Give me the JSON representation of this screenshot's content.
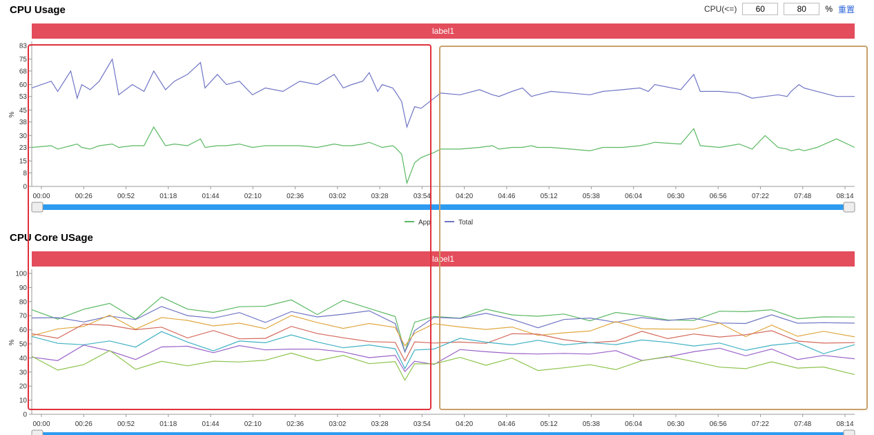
{
  "header": {
    "cpu_title": "CPU Usage",
    "core_title": "CPU Core USage"
  },
  "controls": {
    "label": "CPU(<=)",
    "low_value": "60",
    "high_value": "80",
    "unit": "%",
    "reset_label": "重置"
  },
  "colors": {
    "banner": "#e34d5c",
    "slider": "#2d9bf0",
    "red_box": "#e0303c",
    "tan_box": "#c9a068",
    "app": "#5ab862",
    "total": "#6f74c4",
    "cores": [
      "#5ab862",
      "#6f74c4",
      "#e0a840",
      "#d3685a",
      "#3fb1c2",
      "#9a62c8",
      "#8bc34a",
      "#5a9bd4"
    ]
  },
  "chart_data": [
    {
      "type": "line",
      "title": "CPU Usage",
      "banner": "label1",
      "ylabel": "%",
      "yticks": [
        0,
        8,
        15,
        23,
        30,
        38,
        45,
        53,
        60,
        68,
        75,
        83
      ],
      "ylim": [
        0,
        83
      ],
      "xticks": [
        "00:00",
        "00:26",
        "00:52",
        "01:18",
        "01:44",
        "02:10",
        "02:36",
        "03:02",
        "03:28",
        "03:54",
        "04:20",
        "04:46",
        "05:12",
        "05:38",
        "06:04",
        "06:30",
        "06:56",
        "07:22",
        "07:48",
        "08:14"
      ],
      "legend": [
        "App",
        "Total"
      ],
      "legend_position": "bottom-center",
      "series": [
        {
          "name": "App",
          "x": [
            0,
            30,
            40,
            60,
            70,
            77,
            90,
            104,
            124,
            134,
            155,
            173,
            188,
            206,
            220,
            240,
            260,
            267,
            286,
            300,
            320,
            340,
            360,
            387,
            413,
            440,
            466,
            480,
            493,
            510,
            520,
            533,
            540,
            556,
            560,
            570,
            578,
            590,
            600,
            620,
            630,
            660,
            690,
            710,
            720,
            740,
            756,
            770,
            779,
            800,
            830,
            860,
            880,
            910,
            937,
            950,
            960,
            1000,
            1020,
            1030,
            1060,
            1090,
            1110,
            1130,
            1150,
            1164,
            1170,
            1182,
            1190,
            1210,
            1240,
            1268
          ],
          "y": [
            23,
            24,
            22,
            24,
            25,
            23,
            22,
            24,
            25,
            23,
            24,
            24,
            35,
            24,
            25,
            24,
            28,
            23,
            24,
            24,
            25,
            23,
            24,
            24,
            24,
            23,
            25,
            24,
            24,
            25,
            26,
            24,
            23,
            24,
            23,
            19,
            2,
            14,
            17,
            20,
            22,
            22,
            23,
            24,
            22,
            23,
            23,
            24,
            23,
            23,
            22,
            21,
            23,
            23,
            24,
            25,
            26,
            25,
            34,
            24,
            23,
            25,
            22,
            30,
            23,
            22,
            21,
            22,
            21,
            23,
            28,
            23
          ]
        },
        {
          "name": "Total",
          "x": [
            0,
            30,
            40,
            60,
            70,
            77,
            90,
            104,
            124,
            134,
            155,
            173,
            188,
            206,
            220,
            240,
            260,
            267,
            286,
            300,
            320,
            340,
            360,
            387,
            413,
            440,
            466,
            480,
            493,
            510,
            520,
            533,
            540,
            556,
            560,
            570,
            578,
            590,
            600,
            620,
            630,
            660,
            690,
            710,
            720,
            740,
            756,
            770,
            779,
            800,
            830,
            860,
            880,
            910,
            937,
            950,
            960,
            1000,
            1020,
            1030,
            1060,
            1090,
            1110,
            1130,
            1150,
            1164,
            1170,
            1182,
            1190,
            1210,
            1240,
            1268
          ],
          "y": [
            58,
            62,
            56,
            68,
            52,
            60,
            57,
            62,
            75,
            54,
            60,
            56,
            68,
            57,
            62,
            66,
            73,
            58,
            66,
            60,
            62,
            54,
            58,
            56,
            62,
            60,
            66,
            58,
            60,
            62,
            67,
            56,
            60,
            58,
            56,
            50,
            35,
            47,
            46,
            52,
            55,
            54,
            57,
            54,
            53,
            56,
            58,
            53,
            54,
            56,
            55,
            54,
            56,
            57,
            58,
            56,
            60,
            57,
            66,
            56,
            56,
            55,
            52,
            53,
            54,
            53,
            56,
            60,
            58,
            56,
            53,
            53
          ]
        }
      ]
    },
    {
      "type": "line",
      "title": "CPU Core USage",
      "banner": "label1",
      "ylabel": "%",
      "yticks": [
        0,
        10,
        20,
        30,
        40,
        50,
        60,
        70,
        80,
        90,
        100
      ],
      "ylim": [
        0,
        100
      ],
      "xticks": [
        "00:00",
        "00:26",
        "00:52",
        "01:18",
        "01:44",
        "02:10",
        "02:36",
        "03:02",
        "03:28",
        "03:54",
        "04:20",
        "04:46",
        "05:12",
        "05:38",
        "06:04",
        "06:30",
        "06:56",
        "07:22",
        "07:48",
        "08:14"
      ],
      "series": [
        {
          "x": [
            0,
            40,
            80,
            120,
            160,
            200,
            240,
            280,
            320,
            360,
            400,
            440,
            480,
            520,
            560,
            575,
            590,
            620,
            660,
            700,
            740,
            780,
            820,
            860,
            900,
            940,
            980,
            1020,
            1060,
            1100,
            1140,
            1180,
            1220,
            1268
          ],
          "y": [
            70,
            72,
            74,
            80,
            68,
            82,
            78,
            74,
            76,
            72,
            78,
            74,
            76,
            72,
            70,
            40,
            66,
            68,
            70,
            72,
            70,
            68,
            72,
            70,
            74,
            70,
            72,
            70,
            74,
            68,
            72,
            70,
            70,
            72
          ]
        },
        {
          "x": [
            0,
            40,
            80,
            120,
            160,
            200,
            240,
            280,
            320,
            360,
            400,
            440,
            480,
            520,
            560,
            575,
            590,
            620,
            660,
            700,
            740,
            780,
            820,
            860,
            900,
            940,
            980,
            1020,
            1060,
            1100,
            1140,
            1180,
            1220,
            1268
          ],
          "y": [
            66,
            68,
            66,
            72,
            64,
            74,
            70,
            68,
            72,
            70,
            72,
            68,
            72,
            70,
            66,
            45,
            62,
            64,
            66,
            68,
            64,
            66,
            66,
            64,
            68,
            66,
            70,
            64,
            68,
            66,
            70,
            66,
            66,
            64
          ]
        },
        {
          "x": [
            0,
            40,
            80,
            120,
            160,
            200,
            240,
            280,
            320,
            360,
            400,
            440,
            480,
            520,
            560,
            575,
            590,
            620,
            660,
            700,
            740,
            780,
            820,
            860,
            900,
            940,
            980,
            1020,
            1060,
            1100,
            1140,
            1180,
            1220,
            1268
          ],
          "y": [
            60,
            62,
            64,
            66,
            60,
            68,
            66,
            62,
            64,
            62,
            66,
            62,
            64,
            62,
            60,
            44,
            58,
            60,
            62,
            60,
            62,
            60,
            62,
            60,
            62,
            60,
            64,
            60,
            62,
            60,
            62,
            60,
            60,
            58
          ]
        },
        {
          "x": [
            0,
            40,
            80,
            120,
            160,
            200,
            240,
            280,
            320,
            360,
            400,
            440,
            480,
            520,
            560,
            575,
            590,
            620,
            660,
            700,
            740,
            780,
            820,
            860,
            900,
            940,
            980,
            1020,
            1060,
            1100,
            1140,
            1180,
            1220,
            1268
          ],
          "y": [
            58,
            56,
            60,
            62,
            56,
            60,
            58,
            56,
            58,
            56,
            60,
            56,
            58,
            56,
            54,
            38,
            52,
            54,
            56,
            54,
            56,
            54,
            56,
            54,
            56,
            54,
            58,
            54,
            56,
            54,
            56,
            52,
            54,
            52
          ]
        },
        {
          "x": [
            0,
            40,
            80,
            120,
            160,
            200,
            240,
            280,
            320,
            360,
            400,
            440,
            480,
            520,
            560,
            575,
            590,
            620,
            660,
            700,
            740,
            780,
            820,
            860,
            900,
            940,
            980,
            1020,
            1060,
            1100,
            1140,
            1180,
            1220,
            1268
          ],
          "y": [
            52,
            50,
            54,
            56,
            50,
            54,
            52,
            50,
            52,
            50,
            54,
            50,
            52,
            50,
            48,
            35,
            46,
            48,
            50,
            48,
            50,
            48,
            50,
            48,
            50,
            48,
            52,
            48,
            50,
            48,
            50,
            46,
            48,
            46
          ]
        },
        {
          "x": [
            0,
            40,
            80,
            120,
            160,
            200,
            240,
            280,
            320,
            360,
            400,
            440,
            480,
            520,
            560,
            575,
            590,
            620,
            660,
            700,
            740,
            780,
            820,
            860,
            900,
            940,
            980,
            1020,
            1060,
            1100,
            1140,
            1180,
            1220,
            1268
          ],
          "y": [
            44,
            42,
            46,
            48,
            42,
            46,
            44,
            42,
            44,
            42,
            46,
            42,
            44,
            42,
            40,
            30,
            38,
            40,
            42,
            40,
            42,
            40,
            42,
            40,
            42,
            40,
            44,
            40,
            42,
            40,
            42,
            38,
            40,
            38
          ]
        },
        {
          "x": [
            0,
            40,
            80,
            120,
            160,
            200,
            240,
            280,
            320,
            360,
            400,
            440,
            480,
            520,
            560,
            575,
            590,
            620,
            660,
            700,
            740,
            780,
            820,
            860,
            900,
            940,
            980,
            1020,
            1060,
            1100,
            1140,
            1180,
            1220,
            1268
          ],
          "y": [
            38,
            36,
            40,
            42,
            36,
            40,
            38,
            36,
            38,
            36,
            40,
            36,
            38,
            36,
            34,
            26,
            32,
            34,
            36,
            34,
            36,
            34,
            36,
            34,
            36,
            34,
            38,
            34,
            36,
            34,
            36,
            32,
            34,
            32
          ]
        }
      ]
    }
  ]
}
